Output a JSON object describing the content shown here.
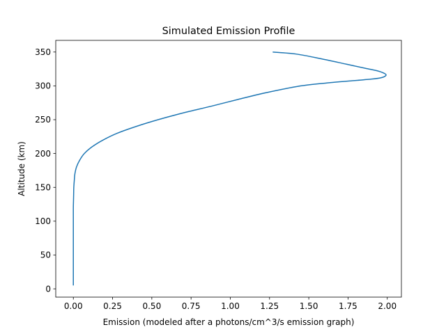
{
  "chart_data": {
    "type": "line",
    "title": "Simulated Emission Profile",
    "xlabel": "Emission (modeled after a photons/cm^3/s emission graph)",
    "ylabel": "Altitude (km)",
    "xlim": [
      -0.112,
      2.09
    ],
    "ylim": [
      -12.25,
      367.25
    ],
    "x_ticks": [
      0.0,
      0.25,
      0.5,
      0.75,
      1.0,
      1.25,
      1.5,
      1.75,
      2.0
    ],
    "x_tick_labels": [
      "0.00",
      "0.25",
      "0.50",
      "0.75",
      "1.00",
      "1.25",
      "1.50",
      "1.75",
      "2.00"
    ],
    "y_ticks": [
      0,
      50,
      100,
      150,
      200,
      250,
      300,
      350
    ],
    "y_tick_labels": [
      "0",
      "50",
      "100",
      "150",
      "200",
      "250",
      "300",
      "350"
    ],
    "grid": false,
    "line_color": "#1f77b4",
    "series": [
      {
        "x": [
          0.0,
          0.0,
          0.0,
          0.001,
          0.002,
          0.003,
          0.006,
          0.01,
          0.02,
          0.04,
          0.07,
          0.12,
          0.19,
          0.28,
          0.4,
          0.54,
          0.7,
          0.88,
          1.05,
          1.23,
          1.45,
          1.65,
          1.8,
          1.9,
          1.96,
          1.99,
          1.985,
          1.94,
          1.86,
          1.74,
          1.58,
          1.42,
          1.27
        ],
        "y": [
          5,
          100,
          120,
          130,
          140,
          150,
          160,
          170,
          180,
          190,
          200,
          210,
          220,
          230,
          240,
          250,
          260,
          270,
          280,
          290,
          300,
          305,
          308,
          310,
          312,
          315,
          318,
          322,
          326,
          332,
          340,
          347,
          350
        ]
      }
    ]
  }
}
